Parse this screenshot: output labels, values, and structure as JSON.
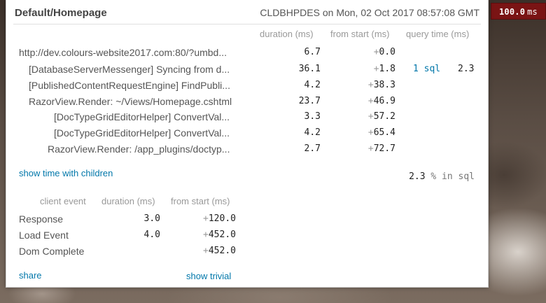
{
  "badge": {
    "value": "100.0",
    "unit": "ms"
  },
  "header": {
    "title": "Default/Homepage",
    "machine_time": "CLDBHPDES on Mon, 02 Oct 2017 08:57:08 GMT"
  },
  "columns": {
    "duration": "duration (ms)",
    "from_start": "from start (ms)",
    "query_time": "query time (ms)"
  },
  "timings": [
    {
      "name": "http://dev.colours-website2017.com:80/?umbd...",
      "duration": "6.7",
      "from_start": "0.0",
      "sql_count": "",
      "query_time": ""
    },
    {
      "name": "[DatabaseServerMessenger] Syncing from d...",
      "duration": "36.1",
      "from_start": "1.8",
      "sql_count": "1 sql",
      "query_time": "2.3"
    },
    {
      "name": "[PublishedContentRequestEngine] FindPubli...",
      "duration": "4.2",
      "from_start": "38.3",
      "sql_count": "",
      "query_time": ""
    },
    {
      "name": "RazorView.Render: ~/Views/Homepage.cshtml",
      "duration": "23.7",
      "from_start": "46.9",
      "sql_count": "",
      "query_time": ""
    },
    {
      "name": "[DocTypeGridEditorHelper] ConvertVal...",
      "duration": "3.3",
      "from_start": "57.2",
      "sql_count": "",
      "query_time": ""
    },
    {
      "name": "[DocTypeGridEditorHelper] ConvertVal...",
      "duration": "4.2",
      "from_start": "65.4",
      "sql_count": "",
      "query_time": ""
    },
    {
      "name": "RazorView.Render: /app_plugins/doctyp...",
      "duration": "2.7",
      "from_start": "72.7",
      "sql_count": "",
      "query_time": ""
    }
  ],
  "show_time_with_children": "show time with children",
  "sql_percent": {
    "value": "2.3",
    "label": "% in sql"
  },
  "client_columns": {
    "event": "client event",
    "duration": "duration (ms)",
    "from_start": "from start (ms)"
  },
  "client_events": [
    {
      "name": "Response",
      "duration": "3.0",
      "from_start": "120.0"
    },
    {
      "name": "Load Event",
      "duration": "4.0",
      "from_start": "452.0"
    },
    {
      "name": "Dom Complete",
      "duration": "",
      "from_start": "452.0"
    }
  ],
  "footer": {
    "share": "share",
    "show_trivial": "show trivial"
  },
  "plus_sign": "+"
}
